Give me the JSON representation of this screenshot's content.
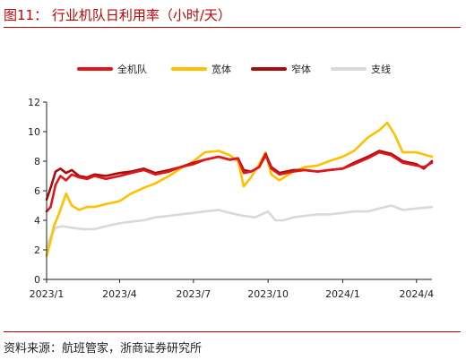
{
  "header": {
    "title": "图11：  行业机队日利用率（小时/天）"
  },
  "footer": {
    "source": "资料来源：航班管家，浙商证券研究所"
  },
  "colors": {
    "full_fleet": "#e0161b",
    "wide_body": "#ffc000",
    "narrow_body": "#a60c0c",
    "regional": "#d9d9d9",
    "accent": "#c00000"
  },
  "legend": [
    {
      "name": "全机队",
      "color_key": "full_fleet"
    },
    {
      "name": "宽体",
      "color_key": "wide_body"
    },
    {
      "name": "窄体",
      "color_key": "narrow_body"
    },
    {
      "name": "支线",
      "color_key": "regional"
    }
  ],
  "chart_data": {
    "type": "line",
    "title": "行业机队日利用率（小时/天）",
    "xlabel": "",
    "ylabel": "",
    "ylim": [
      0,
      12
    ],
    "yticks": [
      0,
      2,
      4,
      6,
      8,
      10,
      12
    ],
    "xlim": [
      "2023-01-01",
      "2024-04-20"
    ],
    "xticks": [
      {
        "date": "2023-01-01",
        "label": "2023/1"
      },
      {
        "date": "2023-04-01",
        "label": "2023/4"
      },
      {
        "date": "2023-07-01",
        "label": "2023/7"
      },
      {
        "date": "2023-10-01",
        "label": "2023/10"
      },
      {
        "date": "2024-01-01",
        "label": "2024/1"
      },
      {
        "date": "2024-04-01",
        "label": "2024/4"
      }
    ],
    "grid": false,
    "legend_position": "top",
    "series": [
      {
        "name": "全机队",
        "color_key": "full_fleet",
        "points": [
          [
            "2023-01-01",
            4.6
          ],
          [
            "2023-01-06",
            4.9
          ],
          [
            "2023-01-12",
            6.4
          ],
          [
            "2023-01-18",
            7.0
          ],
          [
            "2023-01-25",
            6.7
          ],
          [
            "2023-02-01",
            7.1
          ],
          [
            "2023-02-10",
            6.9
          ],
          [
            "2023-02-20",
            6.8
          ],
          [
            "2023-03-01",
            7.0
          ],
          [
            "2023-03-15",
            6.8
          ],
          [
            "2023-04-01",
            7.0
          ],
          [
            "2023-04-15",
            7.2
          ],
          [
            "2023-05-01",
            7.4
          ],
          [
            "2023-05-15",
            7.1
          ],
          [
            "2023-06-01",
            7.3
          ],
          [
            "2023-06-15",
            7.6
          ],
          [
            "2023-07-01",
            7.8
          ],
          [
            "2023-07-15",
            8.1
          ],
          [
            "2023-08-01",
            8.3
          ],
          [
            "2023-08-15",
            8.1
          ],
          [
            "2023-08-25",
            8.2
          ],
          [
            "2023-09-01",
            7.2
          ],
          [
            "2023-09-10",
            7.3
          ],
          [
            "2023-09-20",
            7.6
          ],
          [
            "2023-09-28",
            8.4
          ],
          [
            "2023-10-05",
            7.5
          ],
          [
            "2023-10-15",
            7.1
          ],
          [
            "2023-11-01",
            7.3
          ],
          [
            "2023-11-15",
            7.4
          ],
          [
            "2023-12-01",
            7.3
          ],
          [
            "2023-12-15",
            7.4
          ],
          [
            "2024-01-01",
            7.5
          ],
          [
            "2024-01-15",
            7.8
          ],
          [
            "2024-02-01",
            8.2
          ],
          [
            "2024-02-15",
            8.6
          ],
          [
            "2024-03-01",
            8.4
          ],
          [
            "2024-03-15",
            7.9
          ],
          [
            "2024-04-01",
            7.7
          ],
          [
            "2024-04-10",
            7.6
          ],
          [
            "2024-04-20",
            7.9
          ]
        ]
      },
      {
        "name": "宽体",
        "color_key": "wide_body",
        "points": [
          [
            "2023-01-01",
            1.6
          ],
          [
            "2023-01-05",
            2.4
          ],
          [
            "2023-01-10",
            3.6
          ],
          [
            "2023-01-16",
            4.4
          ],
          [
            "2023-01-25",
            5.8
          ],
          [
            "2023-02-01",
            5.0
          ],
          [
            "2023-02-10",
            4.7
          ],
          [
            "2023-02-20",
            4.9
          ],
          [
            "2023-03-01",
            4.9
          ],
          [
            "2023-03-15",
            5.1
          ],
          [
            "2023-04-01",
            5.3
          ],
          [
            "2023-04-15",
            5.8
          ],
          [
            "2023-05-01",
            6.2
          ],
          [
            "2023-05-15",
            6.5
          ],
          [
            "2023-06-01",
            7.0
          ],
          [
            "2023-06-15",
            7.5
          ],
          [
            "2023-07-01",
            8.0
          ],
          [
            "2023-07-15",
            8.6
          ],
          [
            "2023-08-01",
            8.7
          ],
          [
            "2023-08-15",
            8.4
          ],
          [
            "2023-08-25",
            8.0
          ],
          [
            "2023-09-01",
            6.3
          ],
          [
            "2023-09-10",
            6.9
          ],
          [
            "2023-09-20",
            7.8
          ],
          [
            "2023-09-28",
            8.6
          ],
          [
            "2023-10-05",
            7.1
          ],
          [
            "2023-10-15",
            6.7
          ],
          [
            "2023-11-01",
            7.3
          ],
          [
            "2023-11-15",
            7.6
          ],
          [
            "2023-12-01",
            7.7
          ],
          [
            "2023-12-15",
            8.0
          ],
          [
            "2024-01-01",
            8.3
          ],
          [
            "2024-01-15",
            8.7
          ],
          [
            "2024-02-01",
            9.6
          ],
          [
            "2024-02-15",
            10.1
          ],
          [
            "2024-02-25",
            10.6
          ],
          [
            "2024-03-05",
            9.8
          ],
          [
            "2024-03-15",
            8.6
          ],
          [
            "2024-04-01",
            8.6
          ],
          [
            "2024-04-20",
            8.3
          ]
        ]
      },
      {
        "name": "窄体",
        "color_key": "narrow_body",
        "points": [
          [
            "2023-01-01",
            5.4
          ],
          [
            "2023-01-06",
            6.2
          ],
          [
            "2023-01-12",
            7.3
          ],
          [
            "2023-01-18",
            7.5
          ],
          [
            "2023-01-25",
            7.2
          ],
          [
            "2023-02-01",
            7.4
          ],
          [
            "2023-02-10",
            7.0
          ],
          [
            "2023-02-20",
            6.9
          ],
          [
            "2023-03-01",
            7.1
          ],
          [
            "2023-03-15",
            7.0
          ],
          [
            "2023-04-01",
            7.2
          ],
          [
            "2023-04-15",
            7.3
          ],
          [
            "2023-05-01",
            7.5
          ],
          [
            "2023-05-15",
            7.2
          ],
          [
            "2023-06-01",
            7.4
          ],
          [
            "2023-06-15",
            7.6
          ],
          [
            "2023-07-01",
            7.9
          ],
          [
            "2023-07-15",
            8.1
          ],
          [
            "2023-08-01",
            8.3
          ],
          [
            "2023-08-15",
            8.1
          ],
          [
            "2023-08-25",
            8.2
          ],
          [
            "2023-09-01",
            7.4
          ],
          [
            "2023-09-10",
            7.3
          ],
          [
            "2023-09-20",
            7.6
          ],
          [
            "2023-09-28",
            8.5
          ],
          [
            "2023-10-05",
            7.6
          ],
          [
            "2023-10-15",
            7.2
          ],
          [
            "2023-11-01",
            7.4
          ],
          [
            "2023-11-15",
            7.4
          ],
          [
            "2023-12-01",
            7.3
          ],
          [
            "2023-12-15",
            7.4
          ],
          [
            "2024-01-01",
            7.5
          ],
          [
            "2024-01-15",
            7.9
          ],
          [
            "2024-02-01",
            8.3
          ],
          [
            "2024-02-15",
            8.7
          ],
          [
            "2024-03-01",
            8.5
          ],
          [
            "2024-03-15",
            8.0
          ],
          [
            "2024-04-01",
            7.8
          ],
          [
            "2024-04-10",
            7.5
          ],
          [
            "2024-04-20",
            8.0
          ]
        ]
      },
      {
        "name": "支线",
        "color_key": "regional",
        "points": [
          [
            "2023-01-01",
            2.2
          ],
          [
            "2023-01-06",
            2.9
          ],
          [
            "2023-01-12",
            3.5
          ],
          [
            "2023-01-20",
            3.6
          ],
          [
            "2023-02-01",
            3.5
          ],
          [
            "2023-02-15",
            3.4
          ],
          [
            "2023-03-01",
            3.4
          ],
          [
            "2023-03-15",
            3.6
          ],
          [
            "2023-04-01",
            3.8
          ],
          [
            "2023-04-15",
            3.9
          ],
          [
            "2023-05-01",
            4.0
          ],
          [
            "2023-05-15",
            4.2
          ],
          [
            "2023-06-01",
            4.3
          ],
          [
            "2023-06-15",
            4.4
          ],
          [
            "2023-07-01",
            4.5
          ],
          [
            "2023-07-15",
            4.6
          ],
          [
            "2023-08-01",
            4.7
          ],
          [
            "2023-08-15",
            4.5
          ],
          [
            "2023-09-01",
            4.3
          ],
          [
            "2023-09-15",
            4.2
          ],
          [
            "2023-10-01",
            4.6
          ],
          [
            "2023-10-10",
            4.0
          ],
          [
            "2023-10-20",
            4.0
          ],
          [
            "2023-11-01",
            4.2
          ],
          [
            "2023-11-15",
            4.3
          ],
          [
            "2023-12-01",
            4.4
          ],
          [
            "2023-12-15",
            4.4
          ],
          [
            "2024-01-01",
            4.5
          ],
          [
            "2024-01-15",
            4.6
          ],
          [
            "2024-02-01",
            4.6
          ],
          [
            "2024-02-15",
            4.8
          ],
          [
            "2024-03-01",
            5.0
          ],
          [
            "2024-03-15",
            4.7
          ],
          [
            "2024-04-01",
            4.8
          ],
          [
            "2024-04-20",
            4.9
          ]
        ]
      }
    ]
  }
}
